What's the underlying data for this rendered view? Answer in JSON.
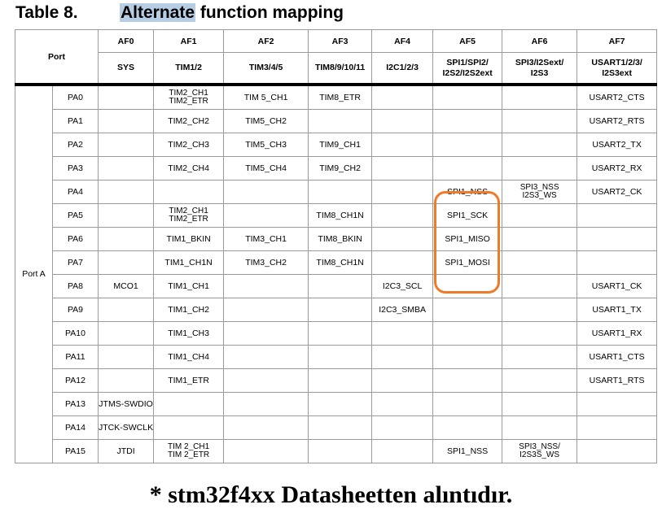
{
  "title": {
    "number": "Table 8.",
    "highlighted": "Alternate",
    "rest": " function mapping"
  },
  "header": {
    "port_label": "Port",
    "af_labels": [
      "AF0",
      "AF1",
      "AF2",
      "AF3",
      "AF4",
      "AF5",
      "AF6",
      "AF7"
    ],
    "func_labels": [
      "SYS",
      "TIM1/2",
      "TIM3/4/5",
      "TIM8/9/10/11",
      "I2C1/2/3",
      "SPI1/SPI2/\nI2S2/I2S2ext",
      "SPI3/I2Sext/\nI2S3",
      "USART1/2/3/\nI2S3ext"
    ]
  },
  "group_label": "Port A",
  "rows": [
    {
      "pin": "PA0",
      "cells": [
        "",
        "TIM2_CH1\nTIM2_ETR",
        "TIM 5_CH1",
        "TIM8_ETR",
        "",
        "",
        "",
        "USART2_CTS"
      ]
    },
    {
      "pin": "PA1",
      "cells": [
        "",
        "TIM2_CH2",
        "TIM5_CH2",
        "",
        "",
        "",
        "",
        "USART2_RTS"
      ]
    },
    {
      "pin": "PA2",
      "cells": [
        "",
        "TIM2_CH3",
        "TIM5_CH3",
        "TIM9_CH1",
        "",
        "",
        "",
        "USART2_TX"
      ]
    },
    {
      "pin": "PA3",
      "cells": [
        "",
        "TIM2_CH4",
        "TIM5_CH4",
        "TIM9_CH2",
        "",
        "",
        "",
        "USART2_RX"
      ]
    },
    {
      "pin": "PA4",
      "cells": [
        "",
        "",
        "",
        "",
        "",
        "SPI1_NSS",
        "SPI3_NSS\nI2S3_WS",
        "USART2_CK"
      ]
    },
    {
      "pin": "PA5",
      "cells": [
        "",
        "TIM2_CH1\nTIM2_ETR",
        "",
        "TIM8_CH1N",
        "",
        "SPI1_SCK",
        "",
        ""
      ]
    },
    {
      "pin": "PA6",
      "cells": [
        "",
        "TIM1_BKIN",
        "TIM3_CH1",
        "TIM8_BKIN",
        "",
        "SPI1_MISO",
        "",
        ""
      ]
    },
    {
      "pin": "PA7",
      "cells": [
        "",
        "TIM1_CH1N",
        "TIM3_CH2",
        "TIM8_CH1N",
        "",
        "SPI1_MOSI",
        "",
        ""
      ]
    },
    {
      "pin": "PA8",
      "cells": [
        "MCO1",
        "TIM1_CH1",
        "",
        "",
        "I2C3_SCL",
        "",
        "",
        "USART1_CK"
      ]
    },
    {
      "pin": "PA9",
      "cells": [
        "",
        "TIM1_CH2",
        "",
        "",
        "I2C3_SMBA",
        "",
        "",
        "USART1_TX"
      ]
    },
    {
      "pin": "PA10",
      "cells": [
        "",
        "TIM1_CH3",
        "",
        "",
        "",
        "",
        "",
        "USART1_RX"
      ]
    },
    {
      "pin": "PA11",
      "cells": [
        "",
        "TIM1_CH4",
        "",
        "",
        "",
        "",
        "",
        "USART1_CTS"
      ]
    },
    {
      "pin": "PA12",
      "cells": [
        "",
        "TIM1_ETR",
        "",
        "",
        "",
        "",
        "",
        "USART1_RTS"
      ]
    },
    {
      "pin": "PA13",
      "cells": [
        "JTMS-SWDIO",
        "",
        "",
        "",
        "",
        "",
        "",
        ""
      ]
    },
    {
      "pin": "PA14",
      "cells": [
        "JTCK-SWCLK",
        "",
        "",
        "",
        "",
        "",
        "",
        ""
      ]
    },
    {
      "pin": "PA15",
      "cells": [
        "JTDI",
        "TIM 2_CH1\nTIM 2_ETR",
        "",
        "",
        "",
        "SPI1_NSS",
        "SPI3_NSS/\nI2S3S_WS",
        ""
      ]
    }
  ],
  "footer": "* stm32f4xx Datasheetten alıntıdır.",
  "colors": {
    "highlight_border": "#f07a28",
    "title_highlight": "#b7cde4"
  }
}
